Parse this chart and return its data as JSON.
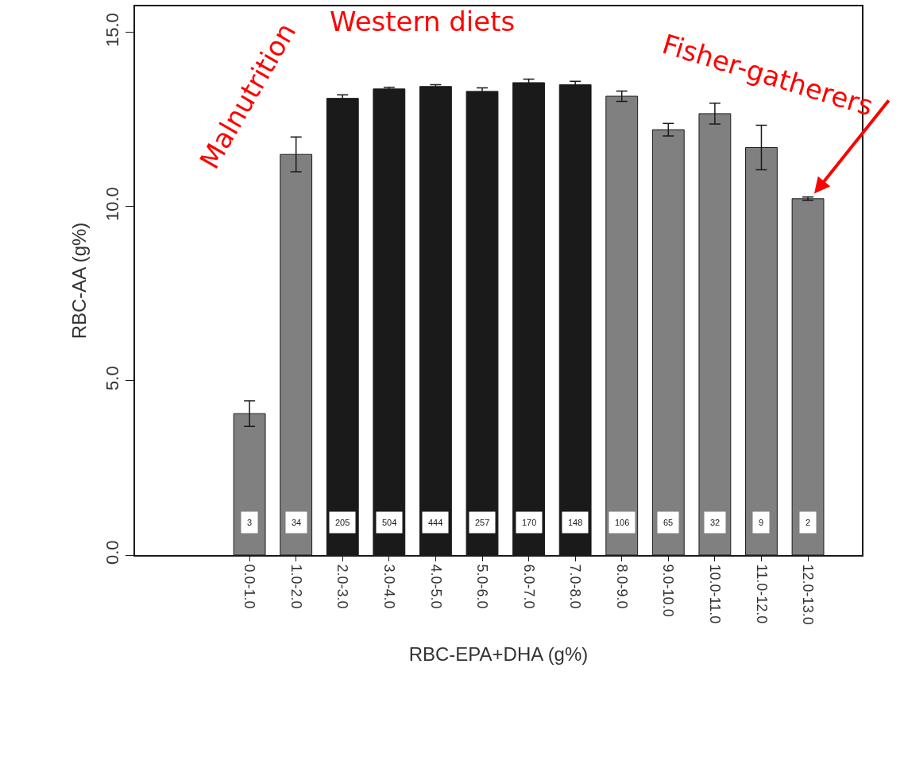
{
  "chart_data": {
    "type": "bar",
    "xlabel": "RBC-EPA+DHA (g%)",
    "ylabel": "RBC-AA (g%)",
    "categories": [
      "0.0-1.0",
      "1.0-2.0",
      "2.0-3.0",
      "3.0-4.0",
      "4.0-5.0",
      "5.0-6.0",
      "6.0-7.0",
      "7.0-8.0",
      "8.0-9.0",
      "9.0-10.0",
      "10.0-11.0",
      "11.0-12.0",
      "12.0-13.0"
    ],
    "values": [
      4.06,
      11.5,
      13.11,
      13.38,
      13.45,
      13.31,
      13.56,
      13.5,
      13.17,
      12.21,
      12.67,
      11.7,
      10.23
    ],
    "errors": [
      0.37,
      0.5,
      0.1,
      0.05,
      0.05,
      0.1,
      0.1,
      0.1,
      0.15,
      0.18,
      0.3,
      0.64,
      0.05
    ],
    "colors": [
      "#808080",
      "#808080",
      "#1a1a1a",
      "#1a1a1a",
      "#1a1a1a",
      "#1a1a1a",
      "#1a1a1a",
      "#1a1a1a",
      "#808080",
      "#808080",
      "#808080",
      "#808080",
      "#808080"
    ],
    "ylim": [
      0,
      15.75
    ],
    "yticks": [
      {
        "value": 0,
        "label": "0.0"
      },
      {
        "value": 5,
        "label": "5.0"
      },
      {
        "value": 10,
        "label": "10.0"
      },
      {
        "value": 15,
        "label": "15.0"
      }
    ],
    "grid": false,
    "annotations": [
      "Malnutrition",
      "Western diets",
      {
        "text": "Fisher-gatherers",
        "x": "12.0-13.0",
        "y": 10.23
      },
      {
        "text": "3",
        "x": "0.0-1.0",
        "y": 0.94
      },
      {
        "text": "34",
        "x": "1.0-2.0",
        "y": 0.94
      },
      {
        "text": "205",
        "x": "2.0-3.0",
        "y": 0.94
      },
      {
        "text": "504",
        "x": "3.0-4.0",
        "y": 0.94
      },
      {
        "text": "444",
        "x": "4.0-5.0",
        "y": 0.94
      },
      {
        "text": "257",
        "x": "5.0-6.0",
        "y": 0.94
      },
      {
        "text": "170",
        "x": "6.0-7.0",
        "y": 0.94
      },
      {
        "text": "148",
        "x": "7.0-8.0",
        "y": 0.94
      },
      {
        "text": "106",
        "x": "8.0-9.0",
        "y": 0.94
      },
      {
        "text": "65",
        "x": "9.0-10.0",
        "y": 0.94
      },
      {
        "text": "32",
        "x": "10.0-11.0",
        "y": 0.94
      },
      {
        "text": "9",
        "x": "11.0-12.0",
        "y": 0.94
      },
      {
        "text": "2",
        "x": "12.0-13.0",
        "y": 0.94
      }
    ]
  }
}
